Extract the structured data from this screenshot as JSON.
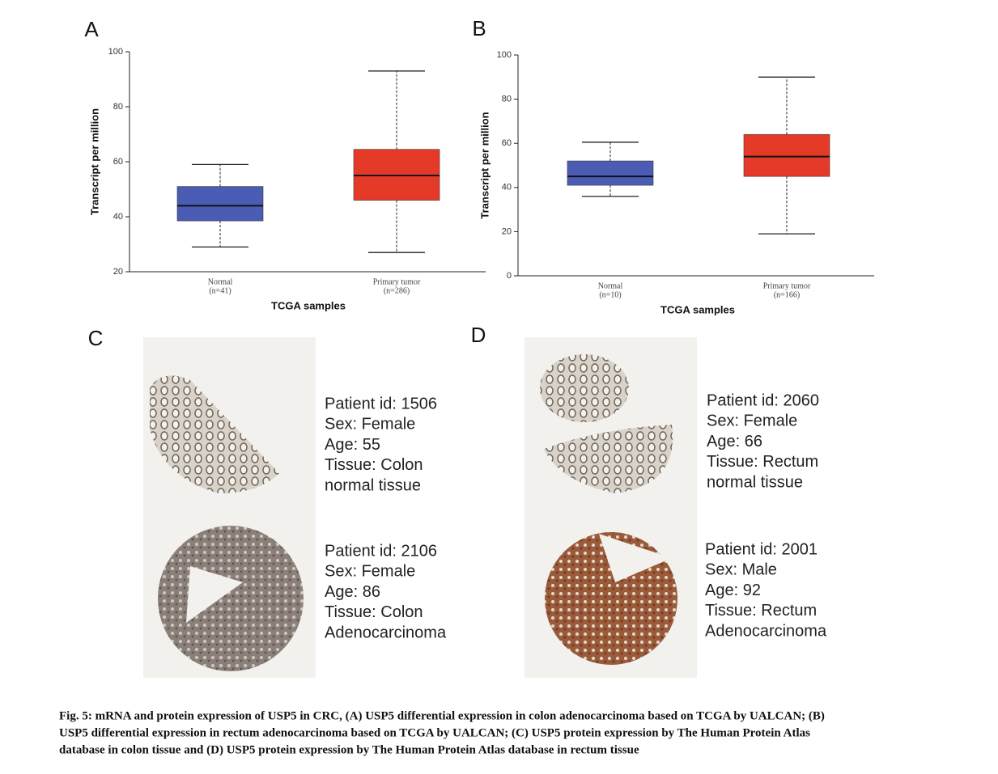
{
  "chart_data": [
    {
      "type": "box",
      "panel": "A",
      "y_label": "Transcript per million",
      "x_label": "TCGA samples",
      "categories": [
        "Normal",
        "Primary tumor"
      ],
      "sample_sizes": [
        "(n=41)",
        "(n=286)"
      ],
      "colors": [
        "#4b5cb4",
        "#e63a28"
      ],
      "stats": [
        {
          "min": 29,
          "q1": 38.5,
          "median": 44,
          "q3": 51,
          "max": 59
        },
        {
          "min": 27,
          "q1": 46,
          "median": 55,
          "q3": 64.5,
          "max": 93
        }
      ],
      "ylim": [
        20,
        100
      ],
      "yticks": [
        20,
        40,
        60,
        80,
        100
      ]
    },
    {
      "type": "box",
      "panel": "B",
      "y_label": "Transcript per million",
      "x_label": "TCGA samples",
      "categories": [
        "Normal",
        "Primary tumor"
      ],
      "sample_sizes": [
        "(n=10)",
        "(n=166)"
      ],
      "colors": [
        "#4b5cb4",
        "#e63a28"
      ],
      "stats": [
        {
          "min": 36,
          "q1": 41,
          "median": 45,
          "q3": 52,
          "max": 60.5
        },
        {
          "min": 19,
          "q1": 45,
          "median": 54,
          "q3": 64,
          "max": 90
        }
      ],
      "ylim": [
        0,
        100
      ],
      "yticks": [
        0,
        20,
        40,
        60,
        80,
        100
      ]
    }
  ],
  "tissue_panels": [
    {
      "label": "C",
      "entries": [
        {
          "lines": [
            "Patient id: 1506",
            "Sex: Female",
            "Age: 55",
            "Tissue: Colon",
            "normal tissue"
          ]
        },
        {
          "lines": [
            "Patient id: 2106",
            "Sex: Female",
            "Age: 86",
            "Tissue: Colon",
            "Adenocarcinoma"
          ]
        }
      ]
    },
    {
      "label": "D",
      "entries": [
        {
          "lines": [
            "Patient id: 2060",
            "Sex: Female",
            "Age: 66",
            "Tissue: Rectum",
            "normal tissue"
          ]
        },
        {
          "lines": [
            "Patient id: 2001",
            "Sex: Male",
            "Age: 92",
            "Tissue: Rectum",
            "Adenocarcinoma"
          ]
        }
      ]
    }
  ],
  "caption": {
    "lines": [
      "Fig. 5: mRNA and protein expression of USP5 in CRC, (A) USP5 differential expression in colon adenocarcinoma based on TCGA by UALCAN; (B)",
      "USP5 differential expression in rectum adenocarcinoma based on TCGA by UALCAN; (C) USP5 protein expression by The Human Protein Atlas",
      "database in colon tissue and (D) USP5 protein expression by The Human Protein Atlas database in rectum tissue"
    ]
  }
}
